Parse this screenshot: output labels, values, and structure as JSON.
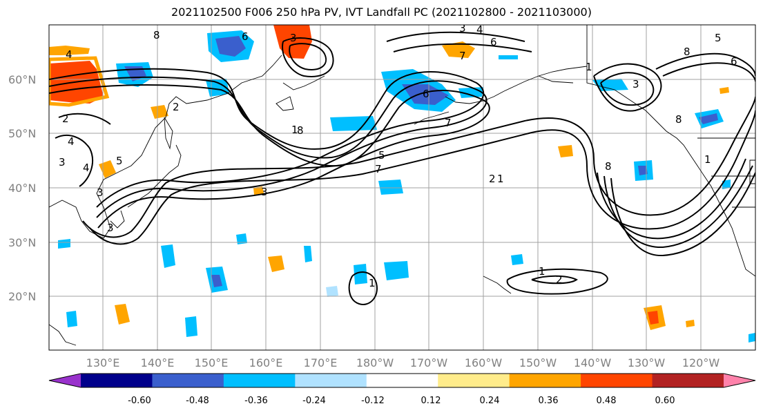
{
  "title": "2021102500 F006 250 hPa PV, IVT Landfall PC (2021102800 - 2021103000)",
  "lat_labels": [
    "60°N",
    "50°N",
    "40°N",
    "30°N",
    "20°N"
  ],
  "lon_labels": [
    "130°E",
    "140°E",
    "150°E",
    "160°E",
    "170°E",
    "180°W",
    "170°W",
    "160°W",
    "150°W",
    "140°W",
    "130°W",
    "120°W"
  ],
  "colorbar": {
    "tick_labels": [
      "-0.60",
      "-0.48",
      "-0.36",
      "-0.24",
      "-0.12",
      "0.12",
      "0.24",
      "0.36",
      "0.48",
      "0.60"
    ],
    "colors": [
      "#9932cc",
      "#00008b",
      "#3a5fcd",
      "#00bfff",
      "#b0e2ff",
      "#ffffff",
      "#ffec8b",
      "#ffa500",
      "#ff4500",
      "#b22222",
      "#ff82ab"
    ]
  },
  "contour_labels": [
    "4",
    "8",
    "6",
    "2",
    "3",
    "5",
    "1",
    "6",
    "7",
    "3",
    "6",
    "1",
    "4",
    "8",
    "8",
    "3",
    "5",
    "7",
    "2",
    "4",
    "3",
    "7",
    "3",
    "3",
    "3",
    "4",
    "8",
    "6",
    "5",
    "1",
    "8",
    "2",
    "1",
    "1",
    "2",
    "1"
  ],
  "chart_data": {
    "type": "map",
    "field": "250 hPa PV contours with IVT Landfall PC shading",
    "lat_range": [
      10,
      70
    ],
    "lon_range_east": [
      120,
      250
    ],
    "colorbar_levels": [
      -0.6,
      -0.48,
      -0.36,
      -0.24,
      -0.12,
      0.12,
      0.24,
      0.36,
      0.48,
      0.6
    ]
  }
}
